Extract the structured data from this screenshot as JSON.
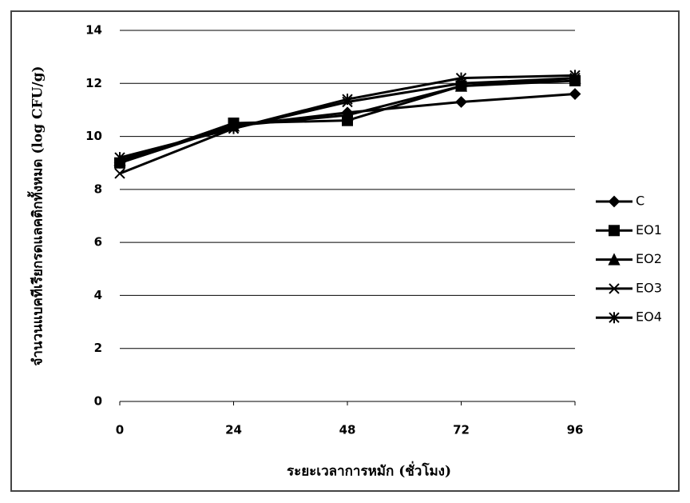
{
  "chart_data": {
    "type": "line",
    "x_label": "ระยะเวลาการหมัก (ชั่วโมง)",
    "y_label": "จำนวนแบคทีเรียกรดแลคติกทั้งหมด (log CFU/g)",
    "x": [
      0,
      24,
      48,
      72,
      96
    ],
    "xlim": [
      0,
      96
    ],
    "xticks": [
      0,
      24,
      48,
      72,
      96
    ],
    "ylim": [
      0,
      14
    ],
    "yticks": [
      0,
      2,
      4,
      6,
      8,
      10,
      12,
      14
    ],
    "grid": true,
    "legend": "right",
    "series": [
      {
        "name": "C",
        "color": "#000000",
        "marker": "diamond",
        "values": [
          9.0,
          10.4,
          10.9,
          11.3,
          11.6
        ]
      },
      {
        "name": "EO1",
        "color": "#000000",
        "marker": "square",
        "values": [
          9.0,
          10.5,
          10.6,
          11.9,
          12.1
        ]
      },
      {
        "name": "EO2",
        "color": "#000000",
        "marker": "triangle",
        "values": [
          9.1,
          10.4,
          10.8,
          11.9,
          12.2
        ]
      },
      {
        "name": "EO3",
        "color": "#000000",
        "marker": "x",
        "values": [
          8.6,
          10.3,
          11.3,
          12.0,
          12.2
        ]
      },
      {
        "name": "EO4",
        "color": "#000000",
        "marker": "star",
        "values": [
          9.2,
          10.3,
          11.4,
          12.2,
          12.3
        ]
      }
    ]
  }
}
